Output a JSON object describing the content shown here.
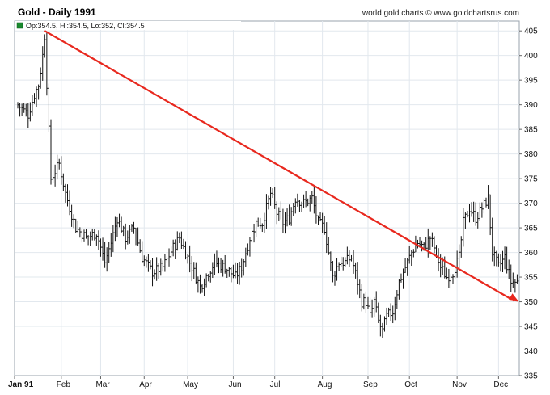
{
  "chart_data": {
    "type": "ohlc",
    "title": "Gold - Daily 1991",
    "credit": "world gold charts © www.goldchartsrus.com",
    "legend": "Op:354.5, Hi:354.5, Lo:352, Cl:354.5",
    "ylim": [
      335,
      407
    ],
    "yticks": [
      335,
      340,
      345,
      350,
      355,
      360,
      365,
      370,
      375,
      380,
      385,
      390,
      395,
      400,
      405
    ],
    "months": [
      "Jan 91",
      "Feb",
      "Mar",
      "Apr",
      "May",
      "Jun",
      "Jul",
      "Aug",
      "Sep",
      "Oct",
      "Nov",
      "Dec"
    ],
    "anchors": [
      [
        0,
        390
      ],
      [
        5,
        388
      ],
      [
        8,
        392
      ],
      [
        10,
        394
      ],
      [
        12,
        400
      ],
      [
        13,
        404
      ],
      [
        16,
        375
      ],
      [
        20,
        378
      ],
      [
        23,
        372
      ],
      [
        28,
        365
      ],
      [
        33,
        363
      ],
      [
        38,
        364
      ],
      [
        42,
        358
      ],
      [
        45,
        362
      ],
      [
        48,
        367
      ],
      [
        52,
        363
      ],
      [
        56,
        365
      ],
      [
        60,
        359
      ],
      [
        65,
        356
      ],
      [
        70,
        357
      ],
      [
        75,
        361
      ],
      [
        78,
        363
      ],
      [
        82,
        359
      ],
      [
        85,
        356
      ],
      [
        88,
        353
      ],
      [
        92,
        356
      ],
      [
        95,
        358
      ],
      [
        100,
        357
      ],
      [
        105,
        355
      ],
      [
        108,
        357
      ],
      [
        112,
        363
      ],
      [
        115,
        366
      ],
      [
        118,
        366
      ],
      [
        122,
        372
      ],
      [
        125,
        368
      ],
      [
        128,
        366
      ],
      [
        131,
        367
      ],
      [
        134,
        371
      ],
      [
        138,
        370
      ],
      [
        142,
        371
      ],
      [
        145,
        366
      ],
      [
        148,
        365
      ],
      [
        152,
        355
      ],
      [
        155,
        358
      ],
      [
        158,
        358
      ],
      [
        161,
        359
      ],
      [
        164,
        354
      ],
      [
        166,
        350
      ],
      [
        168,
        350
      ],
      [
        170,
        347
      ],
      [
        172,
        350
      ],
      [
        174,
        346
      ],
      [
        176,
        344
      ],
      [
        178,
        347
      ],
      [
        181,
        348
      ],
      [
        184,
        354
      ],
      [
        187,
        357
      ],
      [
        190,
        360
      ],
      [
        193,
        362
      ],
      [
        196,
        361
      ],
      [
        199,
        363
      ],
      [
        201,
        361
      ],
      [
        204,
        357
      ],
      [
        207,
        355
      ],
      [
        210,
        356
      ],
      [
        213,
        359
      ],
      [
        215,
        366
      ],
      [
        218,
        369
      ],
      [
        221,
        367
      ],
      [
        224,
        369
      ],
      [
        227,
        371
      ],
      [
        229,
        360
      ],
      [
        232,
        357
      ],
      [
        235,
        359
      ],
      [
        238,
        354
      ]
    ],
    "trend_line": {
      "x": [
        13,
        241
      ],
      "y": [
        405,
        350
      ],
      "color": "#e8281e"
    },
    "bar_color": "#111111",
    "grid": true,
    "y_axis_position": "right"
  }
}
